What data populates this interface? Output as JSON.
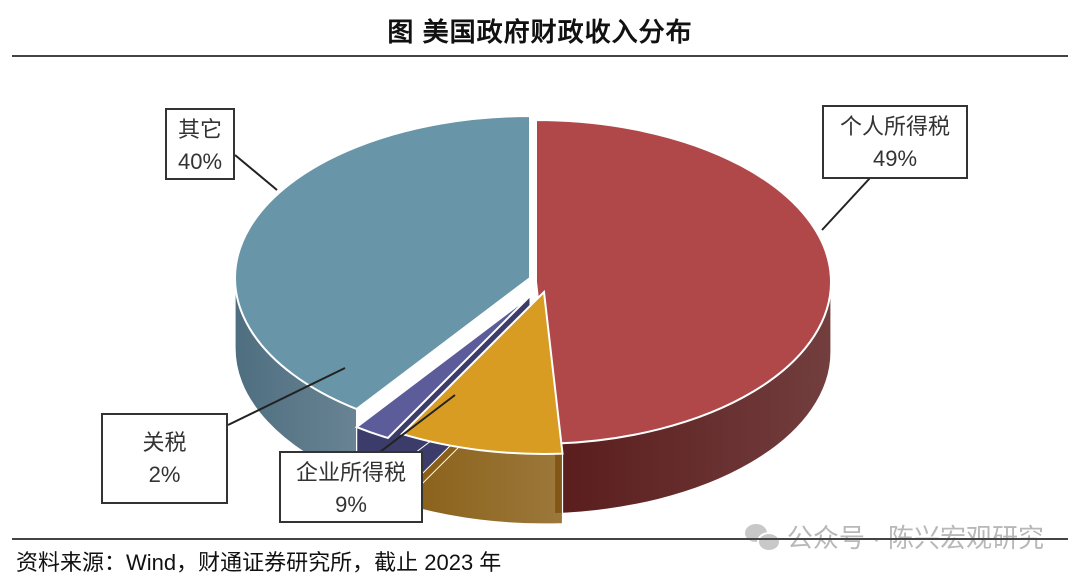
{
  "title": "图  美国政府财政收入分布",
  "source": "资料来源：Wind，财通证券研究所，截止 2023 年",
  "watermark": "公众号 · 陈兴宏观研究",
  "watermark_icon": "wechat-icon",
  "chart_data": {
    "type": "pie",
    "title": "图  美国政府财政收入分布",
    "style": "3d-exploded",
    "slices": [
      {
        "label": "个人所得税",
        "value": 49,
        "display": "49%",
        "color": "#b04849",
        "side_color": "#5a1c1c"
      },
      {
        "label": "企业所得税",
        "value": 9,
        "display": "9%",
        "color": "#d89c22",
        "side_color": "#8a6018"
      },
      {
        "label": "关税",
        "value": 2,
        "display": "2%",
        "color": "#5c5c9a",
        "side_color": "#3c3c6a"
      },
      {
        "label": "其它",
        "value": 40,
        "display": "40%",
        "color": "#6896a8",
        "side_color": "#4e6e80"
      }
    ]
  }
}
